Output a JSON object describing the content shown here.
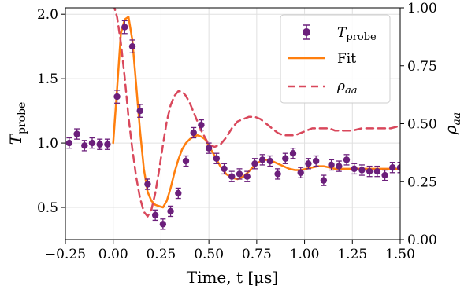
{
  "chart_data": {
    "type": "line",
    "xlabel": "Time, t [μs]",
    "ylabel_left": "T",
    "ylabel_left_sub": "probe",
    "ylabel_right": "ρ",
    "ylabel_right_sub": "aa",
    "xlim": [
      -0.25,
      1.5
    ],
    "ylim_left": [
      0.25,
      2.05
    ],
    "ylim_right": [
      0.0,
      1.0
    ],
    "grid": true,
    "legend_position": "top-right",
    "x_ticks": [
      -0.25,
      0.0,
      0.25,
      0.5,
      0.75,
      1.0,
      1.25,
      1.5
    ],
    "x_tick_labels": [
      "−0.25",
      "0.00",
      "0.25",
      "0.50",
      "0.75",
      "1.00",
      "1.25",
      "1.50"
    ],
    "y_left_ticks": [
      0.5,
      1.0,
      1.5,
      2.0
    ],
    "y_left_tick_labels": [
      "0.5",
      "1.0",
      "1.5",
      "2.0"
    ],
    "y_right_ticks": [
      0.0,
      0.25,
      0.5,
      0.75,
      1.0
    ],
    "y_right_tick_labels": [
      "0.00",
      "0.25",
      "0.50",
      "0.75",
      "1.00"
    ],
    "series": [
      {
        "name": "T_probe",
        "legend_main": "T",
        "legend_sub": "probe",
        "kind": "errorbar",
        "axis": "left",
        "color": "#6b1f7b",
        "x": [
          -0.23,
          -0.19,
          -0.15,
          -0.11,
          -0.07,
          -0.03,
          0.02,
          0.06,
          0.1,
          0.14,
          0.18,
          0.22,
          0.26,
          0.3,
          0.34,
          0.38,
          0.42,
          0.46,
          0.5,
          0.54,
          0.58,
          0.62,
          0.66,
          0.7,
          0.74,
          0.78,
          0.82,
          0.86,
          0.9,
          0.94,
          0.98,
          1.02,
          1.06,
          1.1,
          1.14,
          1.18,
          1.22,
          1.26,
          1.3,
          1.34,
          1.38,
          1.42,
          1.46,
          1.5
        ],
        "y": [
          1.0,
          1.07,
          0.98,
          1.0,
          0.99,
          0.99,
          1.36,
          1.9,
          1.75,
          1.25,
          0.68,
          0.44,
          0.37,
          0.47,
          0.61,
          0.86,
          1.08,
          1.14,
          0.96,
          0.88,
          0.8,
          0.74,
          0.76,
          0.74,
          0.84,
          0.87,
          0.86,
          0.76,
          0.88,
          0.92,
          0.77,
          0.84,
          0.86,
          0.71,
          0.83,
          0.82,
          0.87,
          0.8,
          0.79,
          0.78,
          0.78,
          0.75,
          0.81,
          0.81
        ],
        "yerr": [
          0.04,
          0.04,
          0.04,
          0.04,
          0.04,
          0.04,
          0.05,
          0.05,
          0.05,
          0.05,
          0.04,
          0.04,
          0.04,
          0.04,
          0.04,
          0.04,
          0.04,
          0.04,
          0.04,
          0.04,
          0.04,
          0.04,
          0.04,
          0.04,
          0.04,
          0.04,
          0.04,
          0.04,
          0.04,
          0.04,
          0.04,
          0.04,
          0.04,
          0.04,
          0.04,
          0.04,
          0.04,
          0.04,
          0.04,
          0.04,
          0.04,
          0.04,
          0.04,
          0.04
        ]
      },
      {
        "name": "Fit",
        "legend_main": "Fit",
        "kind": "line",
        "axis": "left",
        "color": "#ff7f0e",
        "x": [
          0.0,
          0.02,
          0.04,
          0.06,
          0.08,
          0.1,
          0.12,
          0.14,
          0.16,
          0.18,
          0.2,
          0.22,
          0.24,
          0.26,
          0.28,
          0.3,
          0.32,
          0.34,
          0.36,
          0.38,
          0.4,
          0.42,
          0.44,
          0.46,
          0.48,
          0.5,
          0.53,
          0.56,
          0.59,
          0.62,
          0.65,
          0.68,
          0.71,
          0.74,
          0.77,
          0.8,
          0.83,
          0.86,
          0.89,
          0.92,
          0.95,
          0.98,
          1.01,
          1.04,
          1.07,
          1.1,
          1.13,
          1.16,
          1.2,
          1.25,
          1.3,
          1.35,
          1.4,
          1.45,
          1.5
        ],
        "y": [
          1.0,
          1.42,
          1.85,
          1.96,
          1.98,
          1.8,
          1.45,
          1.1,
          0.8,
          0.62,
          0.55,
          0.52,
          0.51,
          0.5,
          0.55,
          0.65,
          0.77,
          0.87,
          0.95,
          1.0,
          1.03,
          1.05,
          1.06,
          1.05,
          1.03,
          0.98,
          0.9,
          0.82,
          0.76,
          0.73,
          0.72,
          0.74,
          0.78,
          0.83,
          0.86,
          0.87,
          0.86,
          0.84,
          0.82,
          0.8,
          0.79,
          0.79,
          0.8,
          0.81,
          0.82,
          0.82,
          0.81,
          0.8,
          0.8,
          0.8,
          0.8,
          0.8,
          0.8,
          0.8,
          0.8
        ]
      },
      {
        "name": "rho_aa",
        "legend_main": "ρ",
        "legend_sub": "aa",
        "kind": "line",
        "axis": "right",
        "color": "#d9485c",
        "dash": "9,6",
        "x": [
          0.0,
          0.02,
          0.04,
          0.06,
          0.08,
          0.1,
          0.12,
          0.14,
          0.16,
          0.18,
          0.2,
          0.22,
          0.24,
          0.26,
          0.28,
          0.3,
          0.32,
          0.34,
          0.36,
          0.38,
          0.4,
          0.42,
          0.44,
          0.46,
          0.48,
          0.5,
          0.53,
          0.56,
          0.59,
          0.62,
          0.65,
          0.68,
          0.71,
          0.74,
          0.77,
          0.8,
          0.83,
          0.86,
          0.89,
          0.92,
          0.95,
          0.98,
          1.01,
          1.04,
          1.07,
          1.1,
          1.13,
          1.16,
          1.2,
          1.25,
          1.3,
          1.35,
          1.4,
          1.45,
          1.5
        ],
        "y": [
          1.02,
          0.96,
          0.85,
          0.7,
          0.53,
          0.39,
          0.27,
          0.18,
          0.12,
          0.1,
          0.13,
          0.2,
          0.3,
          0.41,
          0.51,
          0.58,
          0.62,
          0.64,
          0.64,
          0.62,
          0.59,
          0.55,
          0.51,
          0.47,
          0.44,
          0.41,
          0.4,
          0.41,
          0.44,
          0.48,
          0.51,
          0.52,
          0.53,
          0.53,
          0.52,
          0.5,
          0.48,
          0.46,
          0.45,
          0.45,
          0.45,
          0.46,
          0.47,
          0.48,
          0.48,
          0.48,
          0.48,
          0.47,
          0.47,
          0.47,
          0.48,
          0.48,
          0.48,
          0.48,
          0.49
        ]
      }
    ]
  }
}
